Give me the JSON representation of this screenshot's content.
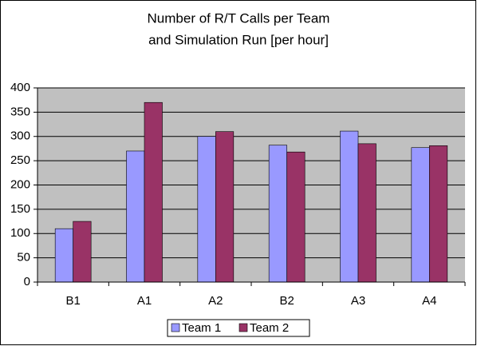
{
  "chart_data": {
    "type": "bar",
    "title": [
      "Number of R/T Calls per Team",
      "and Simulation Run [per hour]"
    ],
    "categories": [
      "B1",
      "A1",
      "A2",
      "B2",
      "A3",
      "A4"
    ],
    "series": [
      {
        "name": "Team 1",
        "color": "#9999ff",
        "values": [
          110,
          270,
          300,
          282,
          311,
          277
        ]
      },
      {
        "name": "Team 2",
        "color": "#993366",
        "values": [
          125,
          370,
          310,
          268,
          285,
          281
        ]
      }
    ],
    "ylim": [
      0,
      400
    ],
    "yticks": [
      0,
      50,
      100,
      150,
      200,
      250,
      300,
      350,
      400
    ],
    "grid": true,
    "legend": "bottom",
    "plot_background": "#c0c0c0"
  }
}
